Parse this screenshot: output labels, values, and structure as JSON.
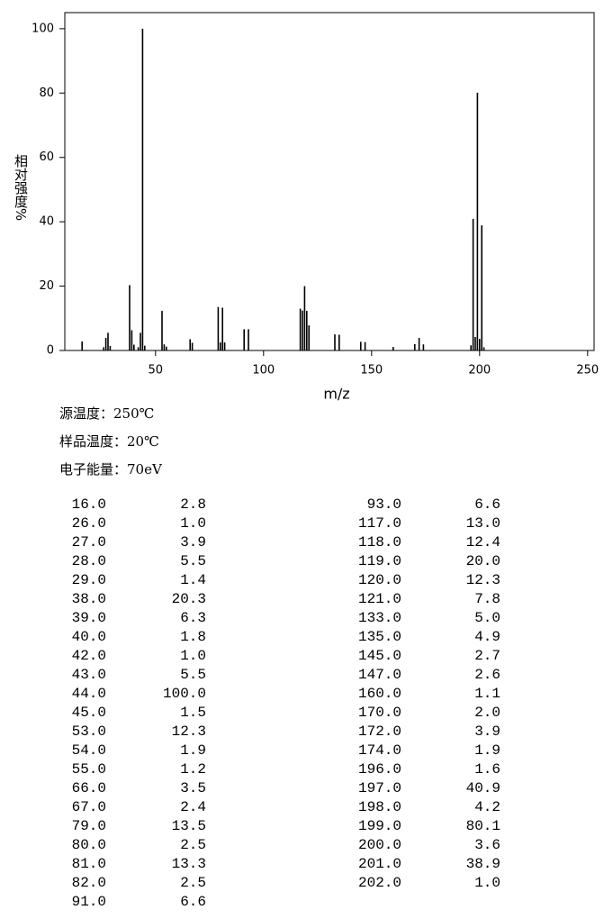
{
  "chart_data": {
    "type": "bar",
    "ylabel": "相对强度%",
    "xlabel": "m/z",
    "x": [
      16,
      26,
      27,
      28,
      29,
      38,
      39,
      40,
      42,
      43,
      44,
      45,
      53,
      54,
      55,
      66,
      67,
      79,
      80,
      81,
      82,
      91,
      93,
      117,
      118,
      119,
      120,
      121,
      133,
      135,
      145,
      147,
      160,
      170,
      172,
      174,
      196,
      197,
      198,
      199,
      200,
      201,
      202
    ],
    "values": [
      2.8,
      1.0,
      3.9,
      5.5,
      1.4,
      20.3,
      6.3,
      1.8,
      1.0,
      5.5,
      100.0,
      1.5,
      12.3,
      1.9,
      1.2,
      3.5,
      2.4,
      13.5,
      2.5,
      13.3,
      2.5,
      6.6,
      6.6,
      13.0,
      12.4,
      20.0,
      12.3,
      7.8,
      5.0,
      4.9,
      2.7,
      2.6,
      1.1,
      2.0,
      3.9,
      1.9,
      1.6,
      40.9,
      4.2,
      80.1,
      3.6,
      38.9,
      1.0
    ],
    "color": "#000000",
    "xlim": [
      8,
      253
    ],
    "xticks": [
      50,
      100,
      150,
      200,
      250
    ],
    "ylim": [
      0,
      105
    ],
    "yticks": [
      0,
      20,
      40,
      60,
      80,
      100
    ]
  },
  "info": [
    "源温度：250℃",
    "样品温度：20℃",
    "电子能量：70eV"
  ],
  "peak_table": {
    "rows": [
      [
        "16.0",
        "2.8"
      ],
      [
        "26.0",
        "1.0"
      ],
      [
        "27.0",
        "3.9"
      ],
      [
        "28.0",
        "5.5"
      ],
      [
        "29.0",
        "1.4"
      ],
      [
        "38.0",
        "20.3"
      ],
      [
        "39.0",
        "6.3"
      ],
      [
        "40.0",
        "1.8"
      ],
      [
        "42.0",
        "1.0"
      ],
      [
        "43.0",
        "5.5"
      ],
      [
        "44.0",
        "100.0"
      ],
      [
        "45.0",
        "1.5"
      ],
      [
        "53.0",
        "12.3"
      ],
      [
        "54.0",
        "1.9"
      ],
      [
        "55.0",
        "1.2"
      ],
      [
        "66.0",
        "3.5"
      ],
      [
        "67.0",
        "2.4"
      ],
      [
        "79.0",
        "13.5"
      ],
      [
        "80.0",
        "2.5"
      ],
      [
        "81.0",
        "13.3"
      ],
      [
        "82.0",
        "2.5"
      ],
      [
        "91.0",
        "6.6"
      ],
      [
        "93.0",
        "6.6"
      ],
      [
        "117.0",
        "13.0"
      ],
      [
        "118.0",
        "12.4"
      ],
      [
        "119.0",
        "20.0"
      ],
      [
        "120.0",
        "12.3"
      ],
      [
        "121.0",
        "7.8"
      ],
      [
        "133.0",
        "5.0"
      ],
      [
        "135.0",
        "4.9"
      ],
      [
        "145.0",
        "2.7"
      ],
      [
        "147.0",
        "2.6"
      ],
      [
        "160.0",
        "1.1"
      ],
      [
        "170.0",
        "2.0"
      ],
      [
        "172.0",
        "3.9"
      ],
      [
        "174.0",
        "1.9"
      ],
      [
        "196.0",
        "1.6"
      ],
      [
        "197.0",
        "40.9"
      ],
      [
        "198.0",
        "4.2"
      ],
      [
        "199.0",
        "80.1"
      ],
      [
        "200.0",
        "3.6"
      ],
      [
        "201.0",
        "38.9"
      ],
      [
        "202.0",
        "1.0"
      ]
    ]
  }
}
